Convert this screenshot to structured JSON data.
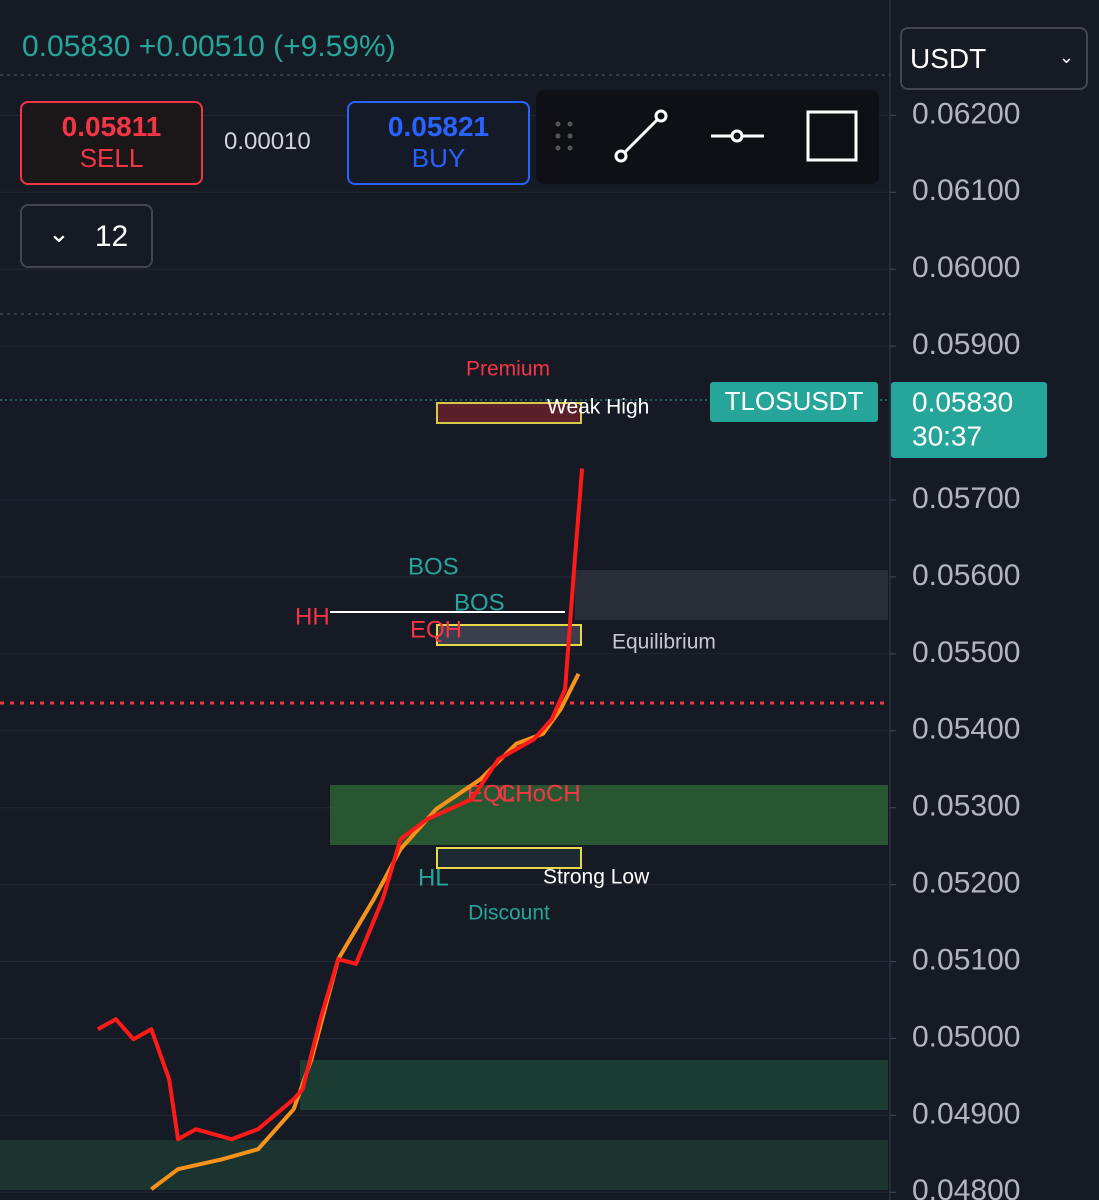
{
  "header": {
    "last": "0.05830",
    "change": "+0.00510 (+9.59%)",
    "currency": "USDT"
  },
  "order": {
    "sell_price": "0.05811",
    "sell": "SELL",
    "spread": "0.00010",
    "buy_price": "0.05821",
    "buy": "BUY"
  },
  "interval": "12",
  "price_tag": {
    "symbol": "TLOSUSDT",
    "price": "0.05830",
    "countdown": "30:37"
  },
  "annotations": {
    "premium": "Premium",
    "weak_high": "Weak High",
    "bos_1": "BOS",
    "bos_2": "BOS",
    "hh": "HH",
    "eqh": "EQH",
    "equilibrium": "Equilibrium",
    "eql": "EQL",
    "choch": "CHoCH",
    "hl": "HL",
    "strong_low": "Strong Low",
    "discount": "Discount"
  },
  "chart_data": {
    "type": "line",
    "ylim": [
      0.0479,
      0.0635
    ],
    "xlim": [
      0,
      100
    ],
    "yticks": [
      {
        "value": 0.062,
        "label": "0.06200"
      },
      {
        "value": 0.061,
        "label": "0.06100"
      },
      {
        "value": 0.06,
        "label": "0.06000"
      },
      {
        "value": 0.059,
        "label": "0.05900"
      },
      {
        "value": 0.057,
        "label": "0.05700"
      },
      {
        "value": 0.056,
        "label": "0.05600"
      },
      {
        "value": 0.055,
        "label": "0.05500"
      },
      {
        "value": 0.054,
        "label": "0.05400"
      },
      {
        "value": 0.053,
        "label": "0.05300"
      },
      {
        "value": 0.052,
        "label": "0.05200"
      },
      {
        "value": 0.051,
        "label": "0.05100"
      },
      {
        "value": 0.05,
        "label": "0.05000"
      },
      {
        "value": 0.049,
        "label": "0.04900"
      },
      {
        "value": 0.048,
        "label": "0.04800"
      }
    ],
    "grid": true,
    "series": [
      {
        "color": "#f7931a",
        "x": [
          17,
          20,
          25,
          29,
          33,
          35,
          38,
          42,
          45,
          49,
          54,
          58,
          61,
          63,
          65
        ],
        "values": [
          0.04804,
          0.0483,
          0.04843,
          0.04856,
          0.04908,
          0.04973,
          0.05103,
          0.05181,
          0.05246,
          0.05298,
          0.05337,
          0.05383,
          0.05396,
          0.05428,
          0.05474
        ]
      },
      {
        "color": "#ff1a1a",
        "x": [
          11,
          13,
          15,
          17,
          19,
          20,
          22,
          26,
          29,
          33,
          34,
          36,
          38,
          40,
          43,
          45,
          48,
          53,
          56,
          60,
          62,
          63.5,
          64.6,
          65.4
        ],
        "values": [
          0.05012,
          0.05025,
          0.04999,
          0.05012,
          0.04947,
          0.04869,
          0.04882,
          0.04869,
          0.04882,
          0.04921,
          0.04934,
          0.05025,
          0.05103,
          0.05097,
          0.05181,
          0.05259,
          0.05285,
          0.05311,
          0.05363,
          0.05389,
          0.05415,
          0.05454,
          0.05624,
          0.05741
        ]
      }
    ]
  }
}
